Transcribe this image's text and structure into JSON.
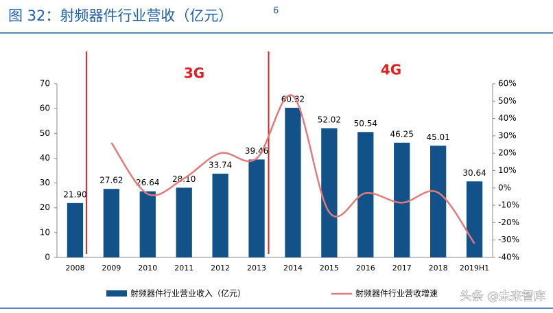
{
  "chart_data": {
    "type": "bar",
    "title": "图 32：射频器件行业营收（亿元）",
    "title_sup": "6",
    "categories": [
      "2008",
      "2009",
      "2010",
      "2011",
      "2012",
      "2013",
      "2014",
      "2015",
      "2016",
      "2017",
      "2018",
      "2019H1"
    ],
    "series": [
      {
        "name": "射频器件行业营业收入（亿元）",
        "type": "bar",
        "color": "#135189",
        "values": [
          21.9,
          27.62,
          26.64,
          28.1,
          33.74,
          39.46,
          60.32,
          52.02,
          50.54,
          46.25,
          45.01,
          30.64
        ],
        "value_labels": [
          "21.90",
          "27.62",
          "26.64",
          "28.10",
          "33.74",
          "39.46",
          "60.32",
          "52.02",
          "50.54",
          "46.25",
          "45.01",
          "30.64"
        ]
      },
      {
        "name": "射频器件行业营收增速",
        "type": "line",
        "axis": "y2",
        "color": "#e07b7b",
        "values": [
          null,
          26,
          -3.5,
          5.5,
          20,
          17,
          53,
          -14,
          -3,
          -8.5,
          -2.7,
          -32
        ]
      }
    ],
    "ylim": [
      0,
      70
    ],
    "yticks": [
      0,
      10,
      20,
      30,
      40,
      50,
      60,
      70
    ],
    "y2lim": [
      -40,
      60
    ],
    "y2ticks": [
      {
        "value": -40,
        "label": "-40%"
      },
      {
        "value": -30,
        "label": "-30%"
      },
      {
        "value": -20,
        "label": "-20%"
      },
      {
        "value": -10,
        "label": "-10%"
      },
      {
        "value": 0,
        "label": "0%"
      },
      {
        "value": 10,
        "label": "10%"
      },
      {
        "value": 20,
        "label": "20%"
      },
      {
        "value": 30,
        "label": "30%"
      },
      {
        "value": 40,
        "label": "40%"
      },
      {
        "value": 50,
        "label": "50%"
      },
      {
        "value": 60,
        "label": "60%"
      }
    ],
    "annotations": [
      "3G",
      "4G"
    ],
    "watermark": "头条 @未来智库"
  }
}
